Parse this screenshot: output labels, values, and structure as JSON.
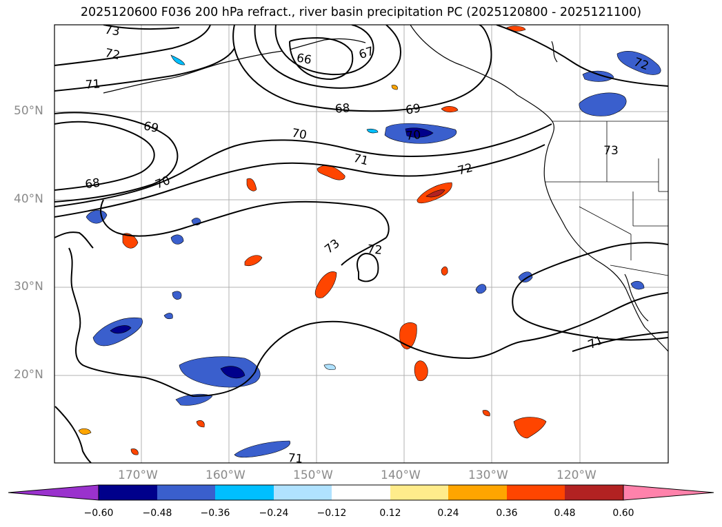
{
  "title": "2025120600 F036 200 hPa refract., river basin precipitation PC (2025120800 - 2025121100)",
  "map": {
    "lat_labels": [
      "50°N",
      "40°N",
      "30°N",
      "20°N"
    ],
    "lon_labels": [
      "170°W",
      "160°W",
      "150°W",
      "140°W",
      "130°W",
      "120°W"
    ],
    "contour_labels": [
      "73",
      "72",
      "71",
      "69",
      "68",
      "70",
      "66",
      "67",
      "68",
      "69",
      "70",
      "71",
      "72",
      "73",
      "72",
      "73",
      "71",
      "71",
      "72",
      "70"
    ],
    "line_color": "#000000",
    "grid_color": "#b0b0b0"
  },
  "colorbar": {
    "colors": [
      "#9a32cd",
      "#00008b",
      "#3a5fcd",
      "#00bfff",
      "#b0e2ff",
      "#ffffff",
      "#ffec8b",
      "#ffa500",
      "#ff4500",
      "#b22222",
      "#ff82ab"
    ],
    "ticks": [
      "−0.60",
      "−0.48",
      "−0.36",
      "−0.24",
      "−0.12",
      "0.12",
      "0.24",
      "0.36",
      "0.48",
      "0.60"
    ]
  }
}
